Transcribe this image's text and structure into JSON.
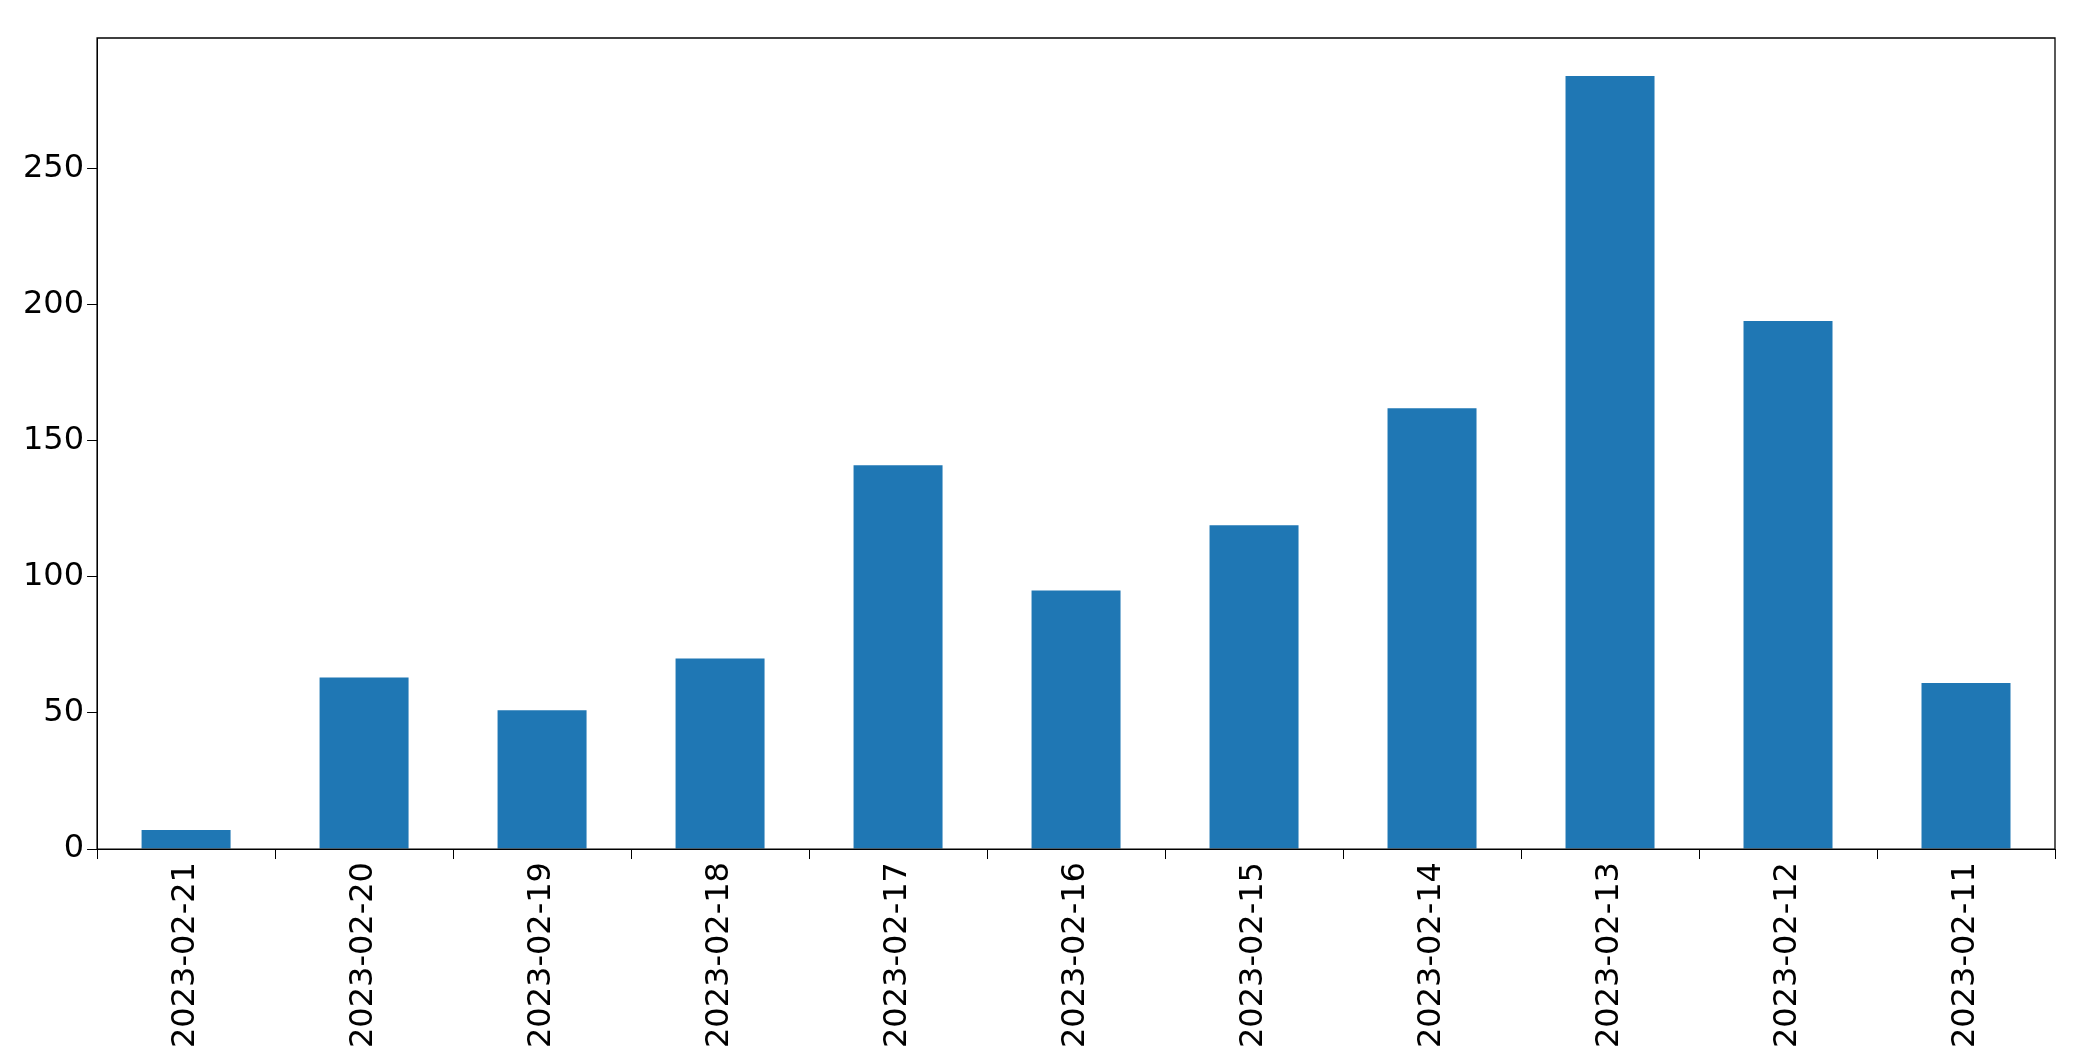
{
  "chart_data": {
    "type": "bar",
    "categories": [
      "2023-02-21",
      "2023-02-20",
      "2023-02-19",
      "2023-02-18",
      "2023-02-17",
      "2023-02-16",
      "2023-02-15",
      "2023-02-14",
      "2023-02-13",
      "2023-02-12",
      "2023-02-11"
    ],
    "values": [
      7,
      63,
      51,
      70,
      141,
      95,
      119,
      162,
      284,
      194,
      61
    ],
    "color": "#1f77b4",
    "ylim": [
      0,
      298
    ],
    "yticks": [
      0,
      50,
      100,
      150,
      200,
      250
    ],
    "grid": false,
    "legend": false
  }
}
